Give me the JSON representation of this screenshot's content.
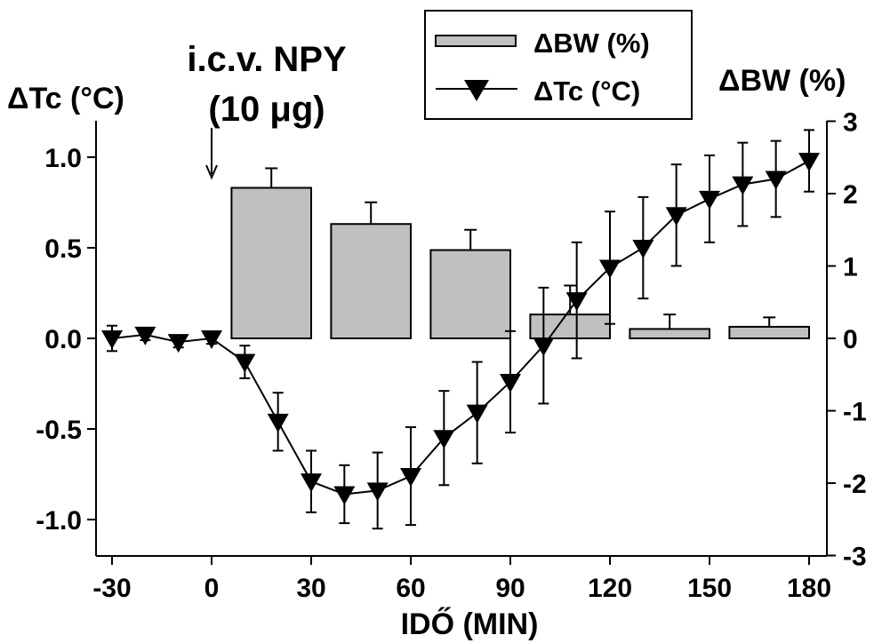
{
  "chart_data": {
    "type": "bar+line",
    "title": "i.c.v. NPY",
    "subtitle": "(10 μg)",
    "xlabel": "IDŐ (MIN)",
    "ylabel_left": "ΔTc (°C)",
    "ylabel_right": "ΔBW (%)",
    "xlim": [
      -30,
      180
    ],
    "ylim_left": [
      -1.2,
      1.2
    ],
    "ylim_right": [
      -3,
      3
    ],
    "x_ticks": [
      "-30",
      "0",
      "30",
      "60",
      "90",
      "120",
      "150",
      "180"
    ],
    "y_left_ticks": [
      "1.0",
      "0.5",
      "0.0",
      "-0.5",
      "-1.0"
    ],
    "y_right_ticks": [
      "3",
      "2",
      "1",
      "0",
      "-1",
      "-2",
      "-3"
    ],
    "arrow_at_x": 0,
    "legend": {
      "placement": "top",
      "entries": [
        "ΔBW (%)",
        "ΔTc (°C)"
      ]
    },
    "bar_series": {
      "name": "ΔBW (%)",
      "axis": "right",
      "color": "#c0c0c0",
      "bars": [
        {
          "x_from": 6,
          "x_to": 30,
          "value": 2.08,
          "error": 0.27
        },
        {
          "x_from": 36,
          "x_to": 60,
          "value": 1.58,
          "error": 0.3
        },
        {
          "x_from": 66,
          "x_to": 90,
          "value": 1.22,
          "error": 0.28
        },
        {
          "x_from": 96,
          "x_to": 120,
          "value": 0.33,
          "error": 0.4
        },
        {
          "x_from": 126,
          "x_to": 150,
          "value": 0.13,
          "error": 0.2
        },
        {
          "x_from": 156,
          "x_to": 180,
          "value": 0.16,
          "error": 0.13
        }
      ]
    },
    "line_series": {
      "name": "ΔTc (°C)",
      "axis": "left",
      "color": "#000000",
      "x": [
        -30,
        -20,
        -10,
        0,
        10,
        20,
        30,
        40,
        50,
        60,
        70,
        80,
        90,
        100,
        110,
        120,
        130,
        140,
        150,
        160,
        170,
        180
      ],
      "y": [
        0.0,
        0.02,
        -0.02,
        0.0,
        -0.13,
        -0.46,
        -0.79,
        -0.86,
        -0.84,
        -0.76,
        -0.55,
        -0.41,
        -0.24,
        -0.04,
        0.21,
        0.39,
        0.5,
        0.68,
        0.77,
        0.85,
        0.88,
        0.98
      ],
      "error": [
        0.07,
        0.03,
        0.03,
        0.03,
        0.09,
        0.16,
        0.17,
        0.16,
        0.21,
        0.27,
        0.26,
        0.28,
        0.28,
        0.32,
        0.32,
        0.31,
        0.28,
        0.28,
        0.24,
        0.23,
        0.21,
        0.17
      ]
    }
  }
}
